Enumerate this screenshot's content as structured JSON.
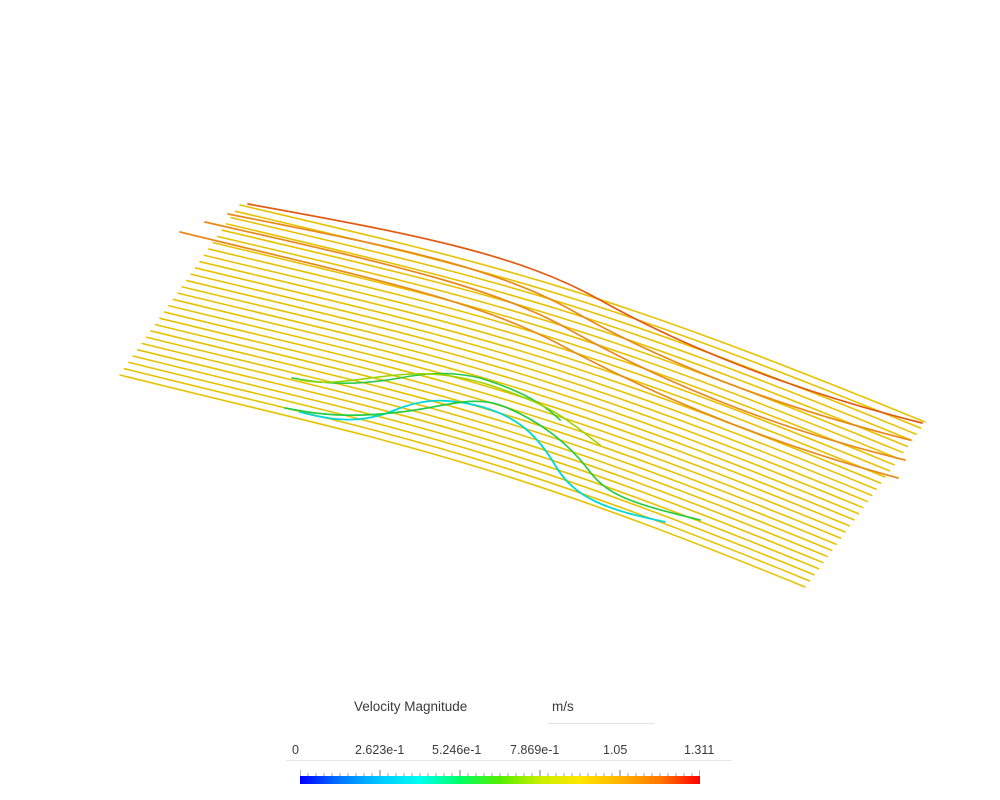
{
  "legend": {
    "title": "Velocity Magnitude",
    "units": "m/s",
    "range": [
      0,
      1.311
    ],
    "ticks": [
      "0",
      "2.623e-1",
      "5.246e-1",
      "7.869e-1",
      "1.05",
      "1.311"
    ],
    "colormap": [
      "#0000ff",
      "#0077ff",
      "#00c8ff",
      "#00ffee",
      "#00ff66",
      "#55ee00",
      "#c8ee00",
      "#ffe600",
      "#ffb300",
      "#ff7700",
      "#ff0000"
    ]
  },
  "colors": {
    "background": "#ffffff",
    "streamline_bulk": "#e8c200",
    "streamline_fast": "#e45a10",
    "streamline_slow": "#00d8d8"
  }
}
